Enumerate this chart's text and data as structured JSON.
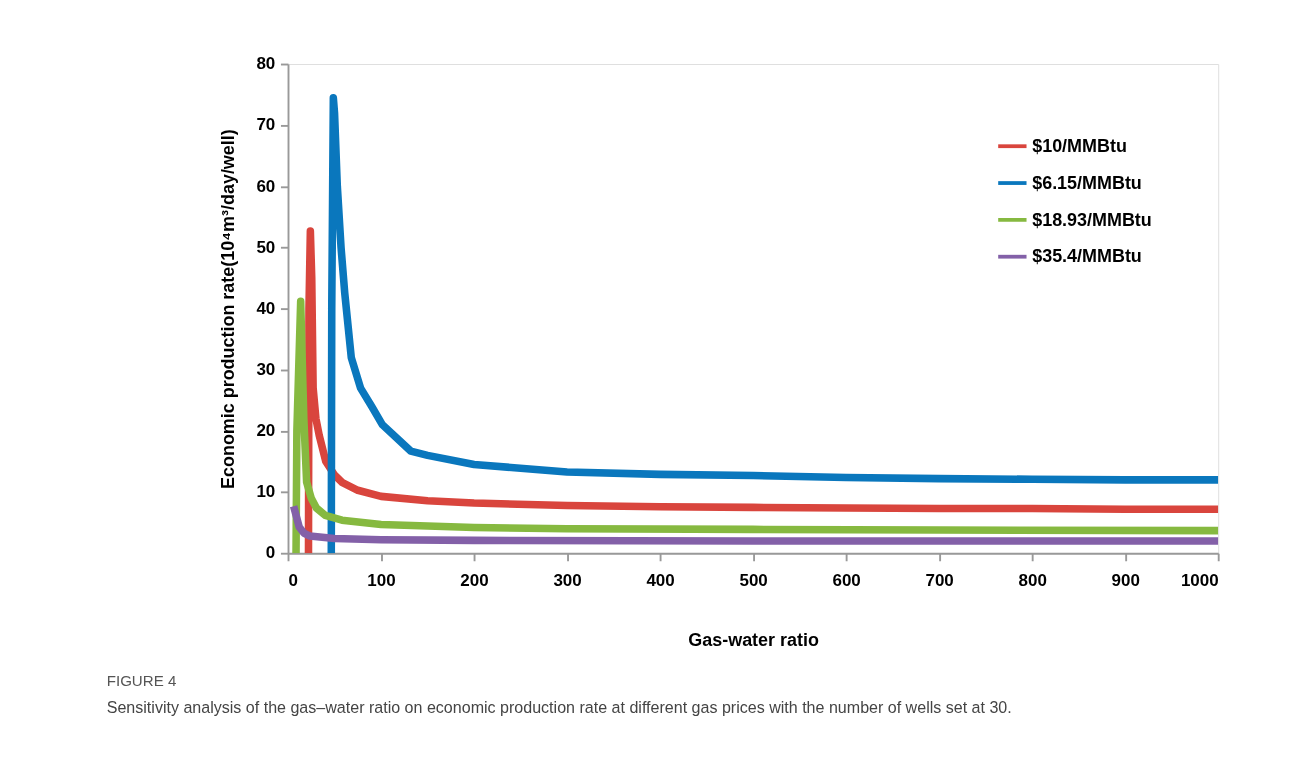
{
  "chart_data": {
    "type": "line",
    "xlabel": "Gas-water ratio",
    "ylabel": "Economic production rate(10⁴m³/day/well)",
    "xlim": [
      0,
      1000
    ],
    "xticks": [
      0,
      100,
      200,
      300,
      400,
      500,
      600,
      700,
      800,
      900,
      1000
    ],
    "ylim": [
      0,
      80
    ],
    "yticks": [
      0,
      10,
      20,
      30,
      40,
      50,
      60,
      70,
      80
    ],
    "grid": false,
    "legend": "top right",
    "marker": "none",
    "line_style": "solid",
    "series": [
      {
        "name": "$10/MMBtu",
        "color": "#d9453d",
        "x": [
          22,
          22.5,
          24,
          25.5,
          27,
          30,
          33.5,
          40.6,
          50,
          58,
          75,
          100,
          150,
          200,
          300,
          400,
          500,
          600,
          700,
          800,
          900,
          1000
        ],
        "values": [
          0,
          40,
          52.7,
          45,
          27,
          22,
          19.3,
          15,
          12.8,
          11.6,
          10.3,
          9.3,
          8.6,
          8.2,
          7.8,
          7.6,
          7.5,
          7.4,
          7.3,
          7.3,
          7.2,
          7.2
        ]
      },
      {
        "name": "$6.15/MMBtu",
        "color": "#0a77bd",
        "x": [
          46.5,
          47,
          48.7,
          50,
          53,
          57,
          61,
          68,
          78,
          90,
          101.5,
          132,
          150,
          200,
          300,
          400,
          500,
          600,
          700,
          800,
          900,
          1000
        ],
        "values": [
          0,
          40,
          74.5,
          72,
          60,
          50,
          42.5,
          32,
          27,
          24,
          21,
          16.7,
          16,
          14.5,
          13.3,
          12.9,
          12.7,
          12.4,
          12.2,
          12.1,
          12,
          12
        ]
      },
      {
        "name": "$18.93/MMBtu",
        "color": "#86b940",
        "x": [
          8.6,
          9.5,
          13.6,
          15,
          17,
          20,
          25,
          30.5,
          40,
          58,
          100,
          200,
          300,
          500,
          700,
          1000
        ],
        "values": [
          0,
          20,
          41.2,
          33,
          22,
          11.6,
          9,
          7.4,
          6.2,
          5.4,
          4.7,
          4.2,
          4.0,
          3.9,
          3.8,
          3.7
        ]
      },
      {
        "name": "$35.4/MMBtu",
        "color": "#8360a8",
        "x": [
          6,
          9,
          12,
          17,
          23.5,
          50,
          100,
          200,
          500,
          1000
        ],
        "values": [
          7.7,
          6,
          4.3,
          3.3,
          2.8,
          2.4,
          2.2,
          2.1,
          2.0,
          2.0
        ]
      }
    ],
    "annotations": [
      "FIGURE 4",
      "Sensitivity analysis of the gas–water ratio on economic production rate at different gas prices with the number of wells set at 30."
    ]
  }
}
